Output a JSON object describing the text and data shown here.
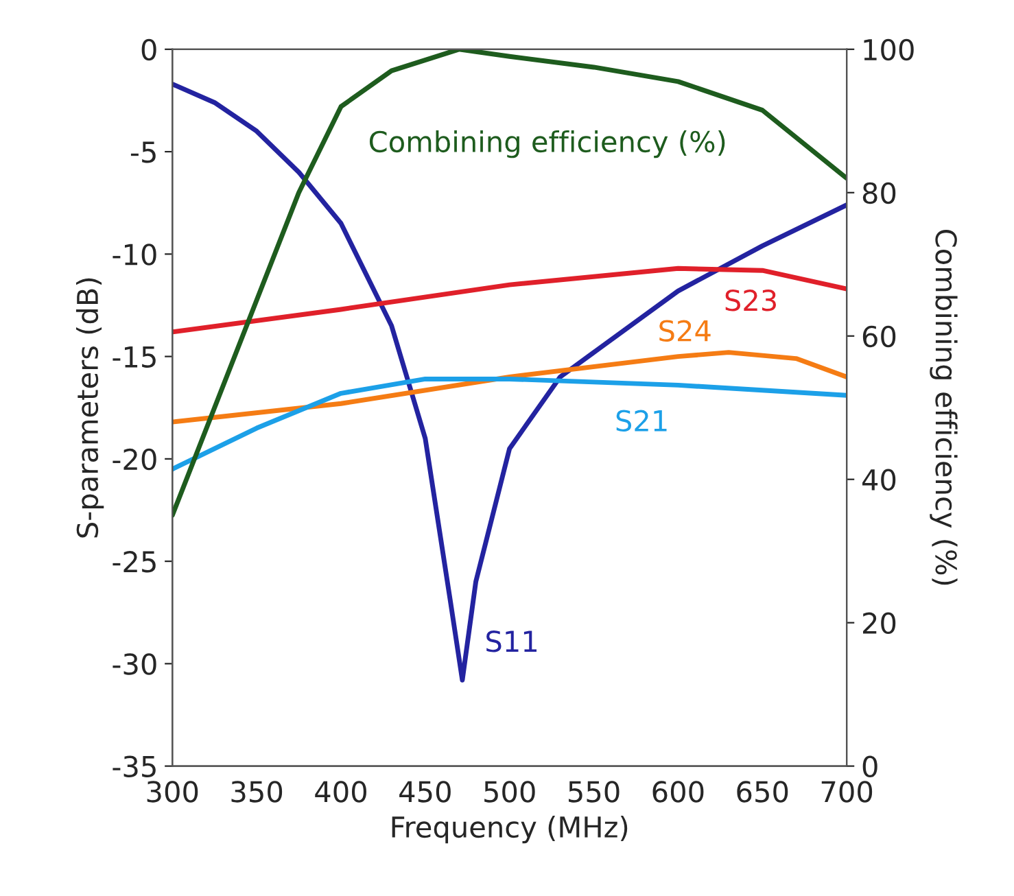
{
  "chart_data": {
    "type": "line",
    "xlabel": "Frequency (MHz)",
    "ylabel": "S-parameters (dB)",
    "y2label": "Combining efficiency (%)",
    "xlim": [
      300,
      700
    ],
    "xticks": [
      300,
      350,
      400,
      450,
      500,
      550,
      600,
      650,
      700
    ],
    "ylim": [
      -35,
      0
    ],
    "yticks": [
      -35,
      -30,
      -25,
      -20,
      -15,
      -10,
      -5,
      0
    ],
    "y2lim": [
      0,
      100
    ],
    "y2ticks": [
      0,
      20,
      40,
      60,
      80,
      100
    ],
    "grid": false,
    "legend": false,
    "series": [
      {
        "name": "Combining efficiency (%)",
        "color": "#1e5c1e",
        "axis": "y2",
        "x": [
          300,
          325,
          350,
          375,
          400,
          430,
          470,
          500,
          550,
          600,
          650,
          700
        ],
        "values": [
          35,
          50,
          65,
          80,
          92,
          97,
          100,
          99,
          97.5,
          95.5,
          91.5,
          82
        ]
      },
      {
        "name": "S11",
        "color": "#2323a0",
        "x": [
          300,
          325,
          350,
          375,
          400,
          430,
          450,
          465,
          472,
          480,
          500,
          530,
          550,
          600,
          650,
          700
        ],
        "values": [
          -1.7,
          -2.6,
          -4,
          -6,
          -8.5,
          -13.5,
          -19,
          -27,
          -30.8,
          -26,
          -19.5,
          -16,
          -14.8,
          -11.8,
          -9.6,
          -7.6
        ]
      },
      {
        "name": "S23",
        "color": "#e0202a",
        "x": [
          300,
          400,
          500,
          600,
          650,
          700
        ],
        "values": [
          -13.8,
          -12.7,
          -11.5,
          -10.7,
          -10.8,
          -11.7
        ]
      },
      {
        "name": "S24",
        "color": "#f57c14",
        "x": [
          300,
          400,
          500,
          600,
          630,
          670,
          700
        ],
        "values": [
          -18.2,
          -17.3,
          -16,
          -15,
          -14.8,
          -15.1,
          -16
        ]
      },
      {
        "name": "S21",
        "color": "#1ca0e8",
        "x": [
          300,
          350,
          400,
          450,
          500,
          600,
          700
        ],
        "values": [
          -20.5,
          -18.5,
          -16.8,
          -16.1,
          -16.1,
          -16.4,
          -16.9
        ]
      }
    ]
  }
}
